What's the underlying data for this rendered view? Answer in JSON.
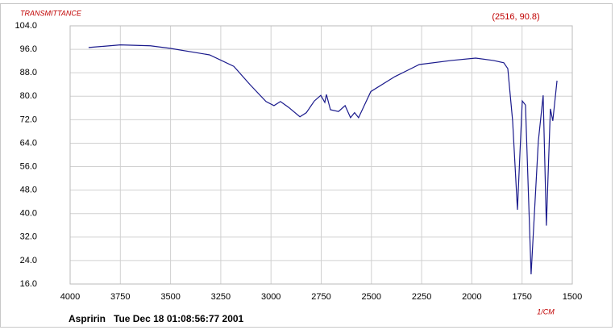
{
  "chart_data": {
    "type": "line",
    "ylabel": "TRANSMITTANCE",
    "xlabel": "1/CM",
    "cursor_readout": "(2516, 90.8)",
    "footer": "Aspririn   Tue Dec 18 01:08:56:77 2001",
    "xlim": [
      4000,
      1500
    ],
    "xticks": [
      4000,
      3750,
      3500,
      3250,
      3000,
      2750,
      2500,
      2250,
      2000,
      1750,
      1500
    ],
    "ylim": [
      16,
      104
    ],
    "yticks": [
      {
        "value": 104,
        "label": "104.0"
      },
      {
        "value": 96,
        "label": "96.0"
      },
      {
        "value": 88,
        "label": "88.0"
      },
      {
        "value": 80,
        "label": "80.0"
      },
      {
        "value": 72,
        "label": "72.0"
      },
      {
        "value": 64,
        "label": "64.0"
      },
      {
        "value": 56,
        "label": "56.0"
      },
      {
        "value": 48,
        "label": "48.0"
      },
      {
        "value": 40,
        "label": "40.0"
      },
      {
        "value": 32,
        "label": "32.0"
      },
      {
        "value": 24,
        "label": "24.0"
      },
      {
        "value": 16,
        "label": "16.0"
      }
    ],
    "grid": true,
    "series": [
      {
        "color": "#1a1a8c",
        "x": [
          3908,
          3750,
          3600,
          3500,
          3306,
          3185,
          3105,
          3025,
          2985,
          2953,
          2912,
          2856,
          2824,
          2784,
          2752,
          2732,
          2724,
          2704,
          2664,
          2631,
          2604,
          2584,
          2564,
          2503,
          2383,
          2262,
          2102,
          1981,
          1893,
          1841,
          1821,
          1797,
          1773,
          1749,
          1733,
          1705,
          1669,
          1645,
          1629,
          1609,
          1597,
          1576
        ],
        "values": [
          96.6,
          97.5,
          97.2,
          96.3,
          94.1,
          90.2,
          84,
          78.2,
          76.8,
          78.2,
          76.2,
          73,
          74.4,
          78.4,
          80.3,
          77.9,
          80.6,
          75.4,
          74.8,
          76.8,
          72.7,
          74.4,
          72.7,
          81.6,
          86.7,
          90.8,
          92.2,
          93,
          92.2,
          91.4,
          89.4,
          71.6,
          41.3,
          78.4,
          77,
          19.3,
          64.7,
          80.3,
          35.9,
          75.7,
          71.6,
          85.3
        ]
      }
    ]
  }
}
